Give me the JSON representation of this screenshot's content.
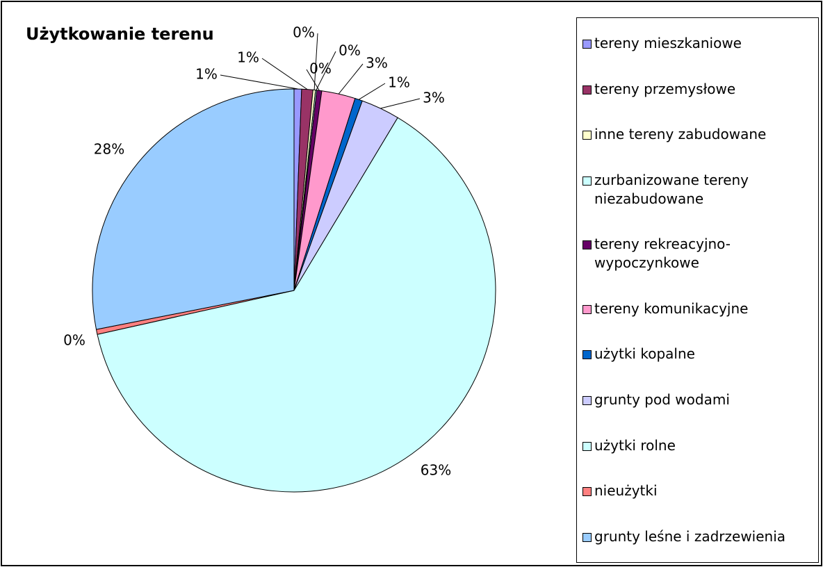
{
  "chart_data": {
    "type": "pie",
    "title": "Użytkowanie terenu",
    "categories": [
      "tereny mieszkaniowe",
      "tereny przemysłowe",
      "inne tereny zabudowane",
      "zurbanizowane tereny niezabudowane",
      "tereny rekreacyjno-wypoczynkowe",
      "tereny komunikacyjne",
      "użytki kopalne",
      "grunty pod wodami",
      "użytki rolne",
      "nieużytki",
      "grunty leśne i zadrzewienia"
    ],
    "values": [
      0.6,
      0.9,
      0.2,
      0.1,
      0.4,
      2.7,
      0.6,
      3.1,
      62.9,
      0.4,
      28.1
    ],
    "value_labels": [
      "1%",
      "1%",
      "0%",
      "0%",
      "0%",
      "3%",
      "1%",
      "3%",
      "63%",
      "0%",
      "28%"
    ],
    "colors": [
      "#9999ff",
      "#993366",
      "#ffffcc",
      "#ccffff",
      "#660066",
      "#ff99cc",
      "#0066cc",
      "#ccccff",
      "#ccffff",
      "#ff8080",
      "#99ccff"
    ],
    "legend": "right"
  }
}
